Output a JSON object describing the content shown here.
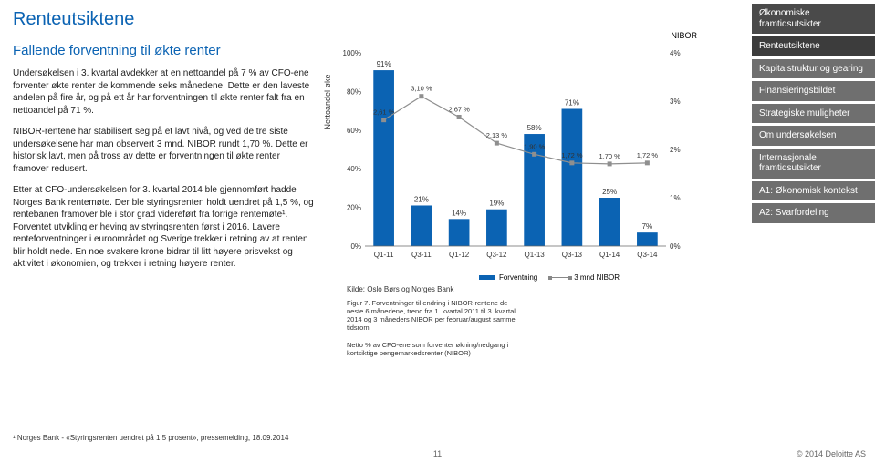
{
  "header": {
    "title": "Renteutsiktene",
    "subtitle": "Fallende forventning til økte renter"
  },
  "paragraphs": {
    "p1": "Undersøkelsen i 3. kvartal avdekker at en nettoandel på 7 % av CFO-ene forventer økte renter de kommende seks månedene. Dette er den laveste andelen på fire år, og på ett år har forventningen til økte renter falt fra en nettoandel på 71 %.",
    "p2": "NIBOR-rentene har stabilisert seg på et lavt nivå, og ved de tre siste undersøkelsene har man observert 3 mnd. NIBOR rundt 1,70 %. Dette er historisk lavt, men på tross av dette er forventningen til økte renter framover redusert.",
    "p3": "Etter at CFO-undersøkelsen for 3. kvartal 2014 ble gjennomført hadde Norges Bank rentemøte. Der ble styringsrenten holdt uendret på 1,5 %, og rentebanen framover ble i stor grad videreført fra forrige rentemøte¹. Forventet utvikling er heving av styringsrenten først i 2016. Lavere renteforventninger i euroområdet og Sverige trekker i retning av at renten blir holdt nede. En noe svakere krone bidrar til litt høyere prisvekst og aktivitet i økonomien, og trekker i retning høyere renter."
  },
  "footnote": "¹ Norges Bank - «Styringsrenten uendret på 1,5 prosent», pressemelding, 18.09.2014",
  "chart": {
    "y_label": "Nettoandel øke",
    "x_labels": [
      "Q1-11",
      "Q3-11",
      "Q1-12",
      "Q3-12",
      "Q1-13",
      "Q3-13",
      "Q1-14",
      "Q3-14"
    ],
    "left_ticks": [
      "0%",
      "20%",
      "40%",
      "60%",
      "80%",
      "100%"
    ],
    "right_ticks": [
      "0%",
      "1%",
      "2%",
      "3%",
      "4%"
    ],
    "right_axis_title": "NIBOR",
    "bars": {
      "values": [
        91,
        21,
        14,
        19,
        58,
        71,
        25,
        7
      ],
      "labels": [
        "91%",
        "21%",
        "14%",
        "19%",
        "58%",
        "71%",
        "25%",
        "7%"
      ],
      "color": "#0b63b3"
    },
    "line": {
      "values": [
        2.61,
        3.1,
        2.67,
        2.13,
        1.9,
        1.72,
        1.7,
        1.72
      ],
      "labels": [
        "2,61 %",
        "3,10 %",
        "2,67 %",
        "2,13 %",
        "1,90 %",
        "1,72 %",
        "1,70 %",
        "1,72 %"
      ],
      "color": "#8f8f8f",
      "marker": "square"
    },
    "legend": {
      "bar": "Forventning",
      "line": "3 mnd NIBOR"
    },
    "source": "Kilde: Oslo Børs og Norges Bank",
    "caption": "Figur 7. Forventninger til endring i NIBOR-rentene de neste 6 månedene, trend fra 1. kvartal 2011 til 3. kvartal 2014 og 3 måneders NIBOR per februar/august samme tidsrom",
    "subcaption": "Netto % av CFO-ene som forventer økning/nedgang i kortsiktige pengemarkedsrenter (NIBOR)",
    "plot": {
      "bg": "#ffffff",
      "axis_color": "#666666",
      "tick_font": 8,
      "label_font": 8,
      "bar_width": 0.55,
      "left_ylim": [
        0,
        100
      ],
      "right_ylim": [
        0,
        4
      ]
    }
  },
  "sidebar": {
    "items": [
      {
        "label": "Økonomiske framtidsutsikter",
        "tone": "dark"
      },
      {
        "label": "Renteutsiktene",
        "tone": "active"
      },
      {
        "label": "Kapitalstruktur og gearing",
        "tone": "normal"
      },
      {
        "label": "Finansieringsbildet",
        "tone": "normal"
      },
      {
        "label": "Strategiske muligheter",
        "tone": "normal"
      },
      {
        "label": "Om undersøkelsen",
        "tone": "normal"
      },
      {
        "label": "Internasjonale framtidsutsikter",
        "tone": "normal"
      },
      {
        "label": "A1: Økonomisk kontekst",
        "tone": "normal"
      },
      {
        "label": "A2: Svarfordeling",
        "tone": "normal"
      }
    ]
  },
  "footer": {
    "page": "11",
    "copyright": "© 2014 Deloitte AS"
  }
}
